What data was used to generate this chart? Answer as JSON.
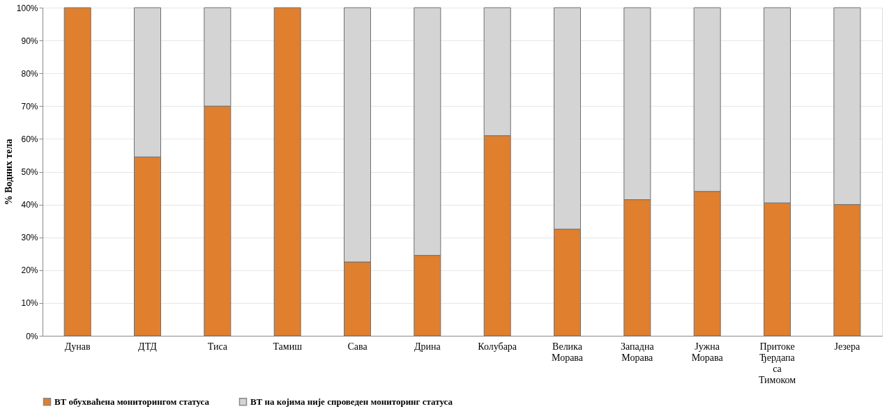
{
  "chart_data": {
    "type": "bar",
    "stacked": true,
    "ylabel": "% Водних тела",
    "categories": [
      "Дунав",
      "ДТД",
      "Тиса",
      "Тамиш",
      "Сава",
      "Дрина",
      "Колубара",
      "Велика Морава",
      "Западна Морава",
      "Јужна Морава",
      "Притоке Ђердапа са Тимоком",
      "Језера"
    ],
    "series": [
      {
        "name": "ВТ обухваћена мониторингом статуса",
        "color": "#e07f2e",
        "values": [
          100,
          54.5,
          70,
          100,
          22.5,
          24.5,
          61,
          32.5,
          41.5,
          44,
          40.5,
          40
        ]
      },
      {
        "name": "ВТ  на којима није спроведен мониторинг статуса",
        "color": "#d4d4d4",
        "values": [
          null,
          45.5,
          30,
          null,
          77.5,
          75.5,
          39,
          67.5,
          58.5,
          56,
          59.5,
          60
        ]
      }
    ],
    "ylim": [
      0,
      100
    ],
    "yticks": [
      {
        "value": 0,
        "label": "0%"
      },
      {
        "value": 10,
        "label": "10%"
      },
      {
        "value": 20,
        "label": "20%"
      },
      {
        "value": 30,
        "label": "30%"
      },
      {
        "value": 40,
        "label": "40%"
      },
      {
        "value": 50,
        "label": "50%"
      },
      {
        "value": 60,
        "label": "60%"
      },
      {
        "value": 70,
        "label": "70%"
      },
      {
        "value": 80,
        "label": "80%"
      },
      {
        "value": 90,
        "label": "90%"
      },
      {
        "value": 100,
        "label": "100%"
      }
    ],
    "grid": "y",
    "legend": "bottom"
  }
}
